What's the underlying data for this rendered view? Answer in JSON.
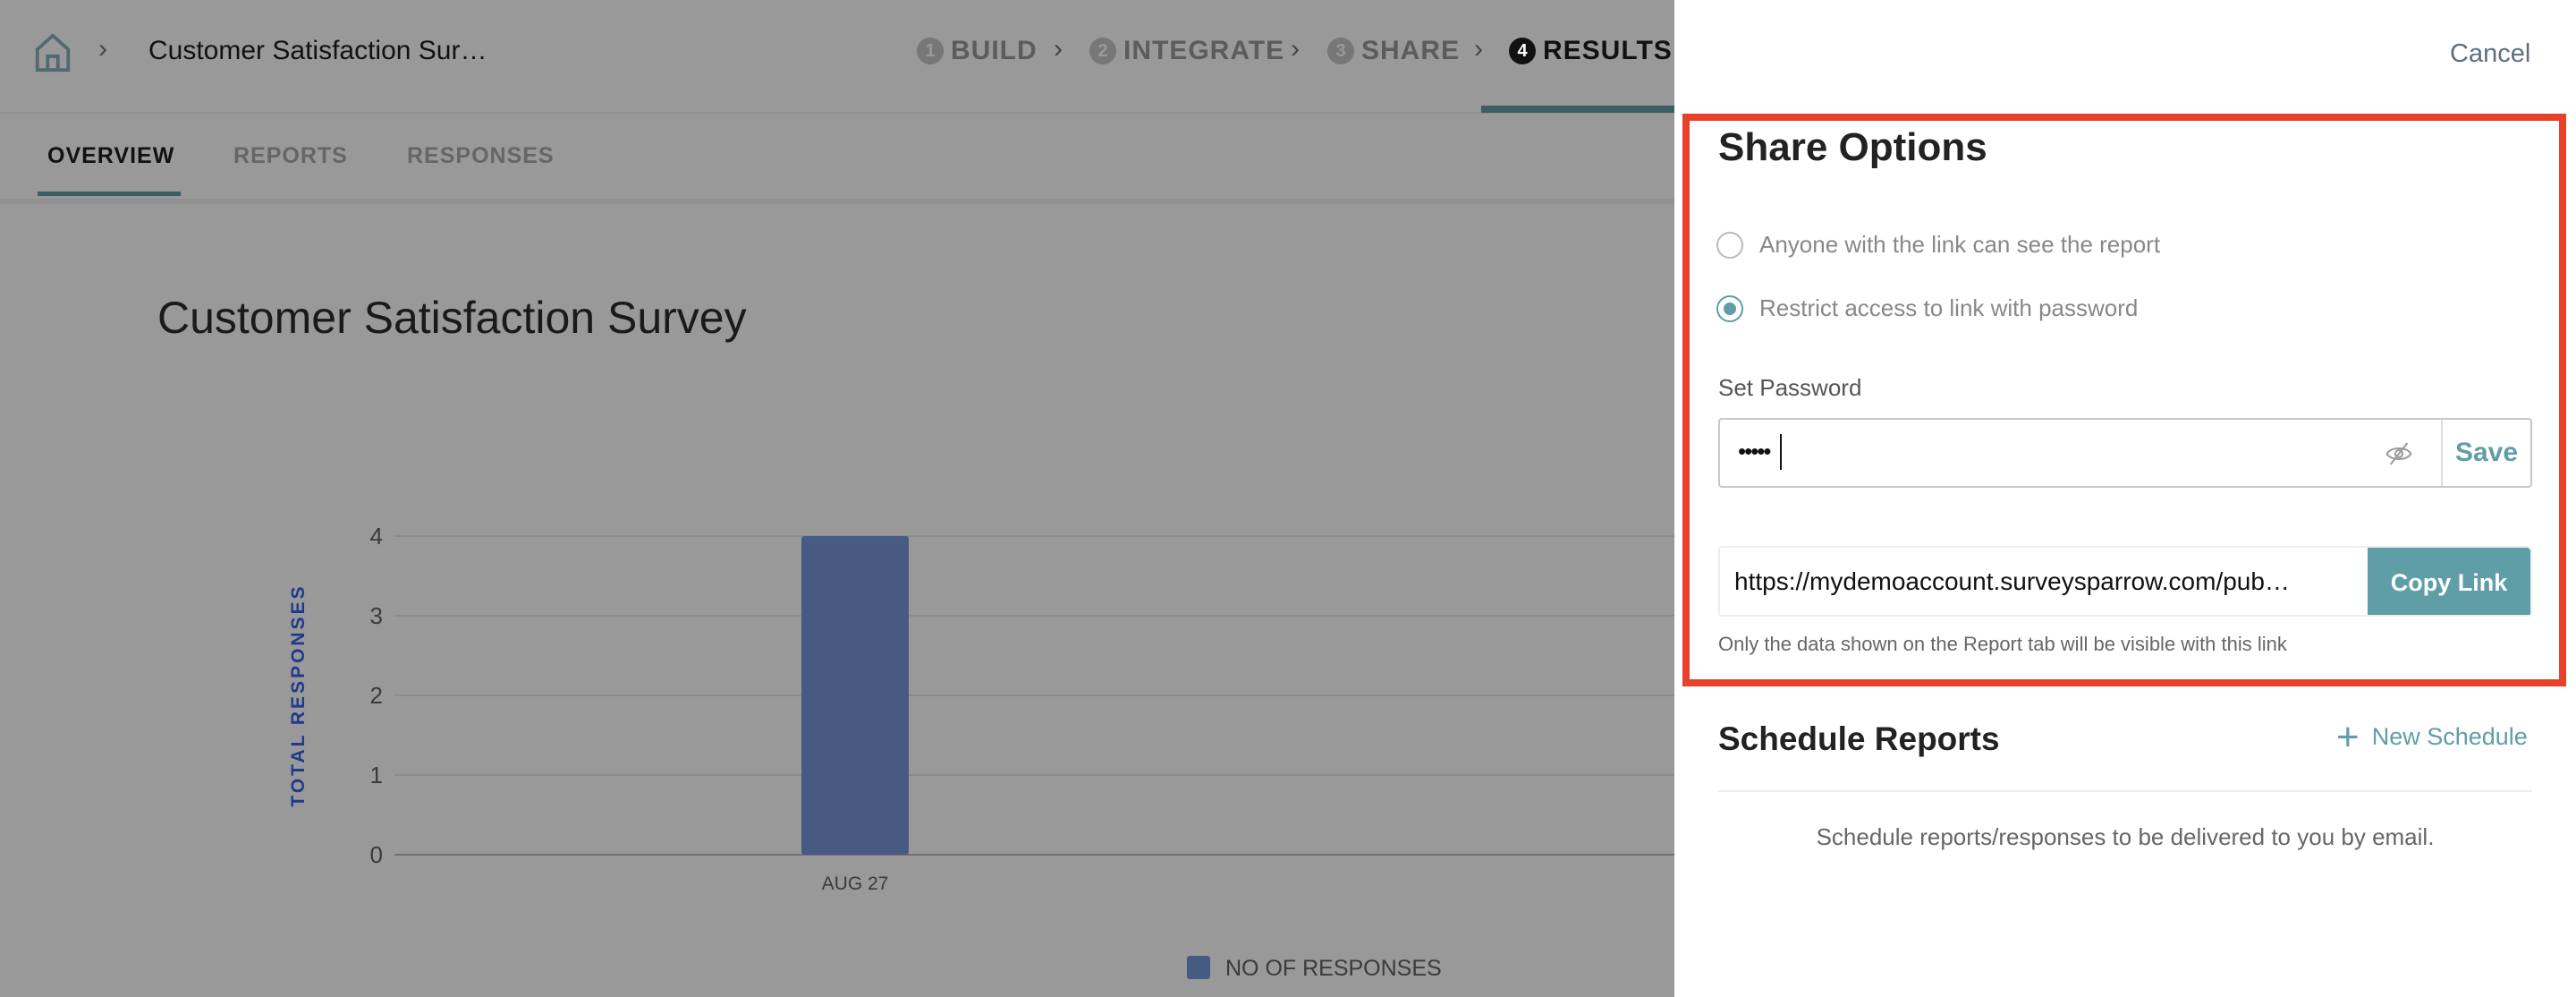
{
  "header": {
    "title": "Customer Satisfaction Sur…",
    "steps": [
      {
        "num": "1",
        "label": "BUILD"
      },
      {
        "num": "2",
        "label": "INTEGRATE"
      },
      {
        "num": "3",
        "label": "SHARE"
      },
      {
        "num": "4",
        "label": "RESULTS"
      }
    ]
  },
  "tabs": [
    "OVERVIEW",
    "REPORTS",
    "RESPONSES"
  ],
  "page_title": "Customer Satisfaction Survey",
  "chart_data": {
    "type": "bar",
    "categories": [
      "AUG 27"
    ],
    "values": [
      4
    ],
    "title": "",
    "xlabel": "",
    "ylabel": "TOTAL RESPONSES",
    "ylim": [
      0,
      4
    ],
    "yticks": [
      "0",
      "1",
      "2",
      "3",
      "4"
    ],
    "grid": true,
    "legend": "bottom",
    "series": [
      {
        "name": "NO OF RESPONSES",
        "values": [
          4
        ]
      }
    ],
    "colors": {
      "bar": "#465a82",
      "ylabel": "#1f3a8a"
    }
  },
  "panel": {
    "cancel": "Cancel",
    "share_title": "Share Options",
    "options": [
      "Anyone with the link can see the report",
      "Restrict access to link with password"
    ],
    "selected_option": 1,
    "set_password_label": "Set Password",
    "password_value": "•••••",
    "save": "Save",
    "link": "https://mydemoaccount.surveysparrow.com/pub…",
    "copy_link": "Copy Link",
    "note": "Only the data shown on the Report tab will be visible with this link",
    "schedule_title": "Schedule Reports",
    "new_schedule": "New Schedule",
    "schedule_desc": "Schedule reports/responses to be delivered to you by email."
  },
  "colors": {
    "accent": "#5f9ea7",
    "highlight": "#e8412b"
  }
}
